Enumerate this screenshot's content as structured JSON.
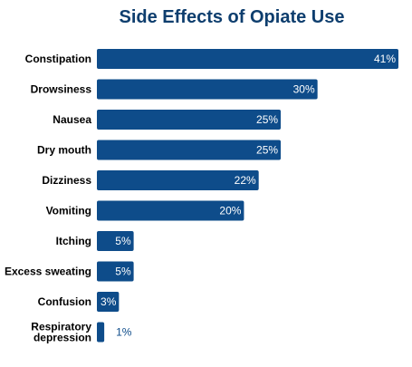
{
  "chart_data": {
    "type": "bar",
    "orientation": "horizontal",
    "title": "Side Effects of Opiate Use",
    "categories": [
      [
        "Constipation"
      ],
      [
        "Drowsiness"
      ],
      [
        "Nausea"
      ],
      [
        "Dry mouth"
      ],
      [
        "Dizziness"
      ],
      [
        "Vomiting"
      ],
      [
        "Itching"
      ],
      [
        "Excess sweating"
      ],
      [
        "Confusion"
      ],
      [
        "Respiratory",
        "depression"
      ]
    ],
    "values": [
      41,
      30,
      25,
      25,
      22,
      20,
      5,
      5,
      3,
      1
    ],
    "value_labels": [
      "41%",
      "30%",
      "25%",
      "25%",
      "22%",
      "20%",
      "5%",
      "5%",
      "3%",
      "1%"
    ],
    "xlim": [
      0,
      41
    ],
    "grid": false,
    "colors": {
      "bar": "#0e4c8a",
      "title": "#0e3e6e",
      "outside_label": "#0e4c8a"
    }
  }
}
